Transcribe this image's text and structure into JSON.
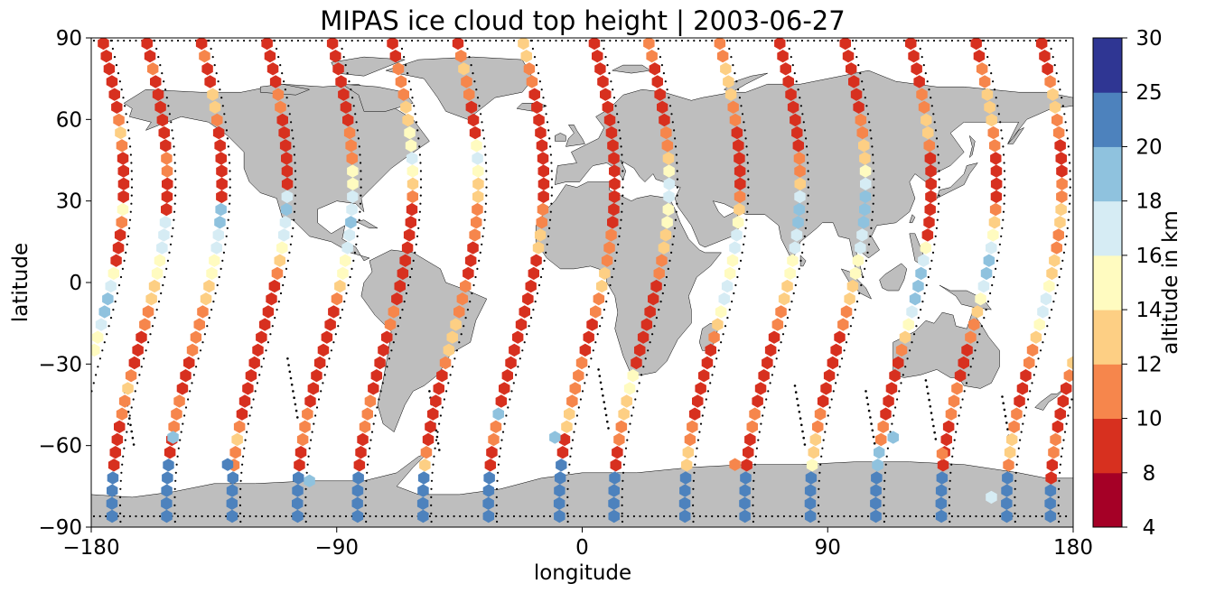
{
  "chart_data": {
    "type": "scatter",
    "subtype": "map-hexbin",
    "title": "MIPAS ice cloud top height | 2003-06-27",
    "xlabel": "longitude",
    "ylabel": "latitude",
    "xlim": [
      -180,
      180
    ],
    "ylim": [
      -90,
      90
    ],
    "xticks": [
      -180,
      -90,
      0,
      90,
      180
    ],
    "yticks": [
      -90,
      -60,
      -30,
      0,
      30,
      60,
      90
    ],
    "xtick_labels": [
      "−180",
      "−90",
      "0",
      "90",
      "180"
    ],
    "ytick_labels": [
      "−90",
      "−60",
      "−30",
      "0",
      "30",
      "60",
      "90"
    ],
    "grid": false,
    "colorbar": {
      "label": "altitude in km",
      "position": "right",
      "levels": [
        4,
        8,
        10,
        12,
        14,
        16,
        18,
        20,
        25,
        30
      ],
      "tick_labels": [
        "4",
        "8",
        "10",
        "12",
        "14",
        "16",
        "18",
        "20",
        "25",
        "30"
      ],
      "colors": [
        "#a50026",
        "#d73027",
        "#f46d43",
        "#fdae61",
        "#fee090",
        "#ffffbf",
        "#e0f3f8",
        "#abd9e9",
        "#4575b4",
        "#313695"
      ],
      "draw_colors": [
        "#a50026",
        "#d7301f",
        "#f6864c",
        "#fdcf84",
        "#fffbc0",
        "#d6ecf4",
        "#8fc2de",
        "#4d82bd",
        "#2f3693"
      ]
    },
    "land_color": "#bebebe",
    "tracks": [
      {
        "lon0": -176,
        "values": [
          8,
          8,
          8,
          8,
          8,
          8,
          10,
          12,
          10,
          8,
          8,
          8,
          8,
          14,
          10,
          8,
          8,
          8,
          14,
          16,
          18,
          18,
          16,
          14,
          14,
          12,
          10,
          8,
          8,
          8,
          8,
          10,
          10,
          8,
          8,
          22,
          22,
          22
        ]
      },
      {
        "lon0": -160,
        "values": [
          8,
          8,
          10,
          8,
          8,
          8,
          8,
          8,
          8,
          10,
          10,
          8,
          8,
          8,
          16,
          16,
          16,
          14,
          14,
          12,
          12,
          10,
          10,
          8,
          8,
          8,
          10,
          12,
          10,
          10,
          8,
          8,
          8,
          8,
          22,
          22,
          22,
          22
        ]
      },
      {
        "lon0": -140,
        "values": [
          8,
          10,
          8,
          8,
          12,
          12,
          10,
          8,
          8,
          8,
          8,
          8,
          8,
          18,
          18,
          16,
          16,
          14,
          14,
          12,
          12,
          10,
          10,
          10,
          10,
          8,
          8,
          8,
          10,
          10,
          10,
          8,
          8,
          22,
          22,
          22,
          22,
          22
        ]
      },
      {
        "lon0": -116,
        "values": [
          8,
          8,
          8,
          8,
          10,
          10,
          8,
          8,
          8,
          8,
          8,
          8,
          16,
          18,
          16,
          16,
          14,
          12,
          10,
          8,
          8,
          8,
          8,
          8,
          8,
          8,
          8,
          8,
          8,
          8,
          10,
          12,
          10,
          10,
          22,
          22,
          22,
          22
        ]
      },
      {
        "lon0": -92,
        "values": [
          8,
          8,
          8,
          8,
          8,
          8,
          8,
          10,
          10,
          10,
          14,
          14,
          16,
          16,
          18,
          16,
          16,
          14,
          14,
          12,
          10,
          8,
          8,
          8,
          8,
          8,
          8,
          8,
          8,
          10,
          10,
          10,
          8,
          8,
          22,
          22,
          22,
          22
        ]
      },
      {
        "lon0": -70,
        "values": [
          8,
          8,
          10,
          10,
          10,
          12,
          12,
          14,
          14,
          16,
          14,
          12,
          10,
          8,
          8,
          8,
          8,
          8,
          8,
          8,
          8,
          10,
          10,
          8,
          8,
          8,
          8,
          8,
          10,
          10,
          10,
          8,
          8,
          8,
          22,
          22,
          22,
          22
        ]
      },
      {
        "lon0": -46,
        "values": [
          8,
          10,
          12,
          10,
          10,
          8,
          8,
          8,
          14,
          16,
          14,
          12,
          12,
          10,
          10,
          10,
          8,
          8,
          8,
          10,
          10,
          10,
          12,
          12,
          12,
          10,
          8,
          8,
          8,
          8,
          8,
          8,
          10,
          12,
          22,
          22,
          22,
          22
        ]
      },
      {
        "lon0": -22,
        "values": [
          12,
          12,
          10,
          10,
          8,
          8,
          8,
          8,
          8,
          8,
          8,
          8,
          8,
          10,
          10,
          12,
          12,
          8,
          8,
          8,
          8,
          8,
          8,
          8,
          8,
          8,
          8,
          8,
          8,
          18,
          10,
          10,
          8,
          8,
          22,
          22,
          22,
          22
        ]
      },
      {
        "lon0": 4,
        "values": [
          8,
          8,
          8,
          8,
          8,
          8,
          8,
          8,
          8,
          8,
          8,
          8,
          8,
          8,
          8,
          10,
          10,
          10,
          12,
          12,
          10,
          10,
          8,
          8,
          8,
          10,
          10,
          10,
          10,
          12,
          12,
          8,
          8,
          22,
          22,
          22,
          22,
          22
        ]
      },
      {
        "lon0": 24,
        "values": [
          10,
          10,
          8,
          8,
          8,
          8,
          8,
          10,
          10,
          12,
          14,
          16,
          16,
          14,
          14,
          12,
          12,
          10,
          10,
          8,
          8,
          8,
          8,
          8,
          8,
          8,
          14,
          14,
          12,
          12,
          10,
          10,
          8,
          8,
          22,
          22,
          22,
          22
        ]
      },
      {
        "lon0": 50,
        "values": [
          10,
          10,
          12,
          12,
          12,
          10,
          10,
          8,
          8,
          8,
          8,
          8,
          10,
          12,
          14,
          16,
          16,
          14,
          14,
          16,
          16,
          14,
          12,
          10,
          8,
          8,
          8,
          8,
          8,
          8,
          10,
          10,
          12,
          12,
          22,
          22,
          22,
          22
        ]
      },
      {
        "lon0": 72,
        "values": [
          8,
          8,
          8,
          8,
          8,
          8,
          8,
          8,
          8,
          10,
          10,
          12,
          16,
          18,
          18,
          16,
          16,
          14,
          14,
          12,
          12,
          10,
          10,
          8,
          8,
          8,
          8,
          8,
          8,
          10,
          10,
          8,
          8,
          8,
          22,
          22,
          22,
          22
        ]
      },
      {
        "lon0": 96,
        "values": [
          8,
          8,
          8,
          8,
          8,
          8,
          10,
          10,
          12,
          12,
          14,
          16,
          18,
          18,
          18,
          16,
          16,
          14,
          14,
          12,
          12,
          10,
          10,
          8,
          8,
          8,
          8,
          8,
          8,
          10,
          10,
          12,
          12,
          14,
          22,
          22,
          22,
          22
        ]
      },
      {
        "lon0": 120,
        "values": [
          8,
          8,
          8,
          8,
          10,
          10,
          12,
          12,
          10,
          8,
          8,
          8,
          8,
          8,
          8,
          8,
          14,
          16,
          18,
          18,
          18,
          16,
          14,
          12,
          10,
          8,
          8,
          8,
          8,
          8,
          10,
          10,
          18,
          18,
          22,
          22,
          22,
          22
        ]
      },
      {
        "lon0": 144,
        "values": [
          8,
          8,
          10,
          10,
          12,
          12,
          12,
          10,
          10,
          8,
          8,
          8,
          8,
          10,
          12,
          14,
          16,
          18,
          18,
          16,
          14,
          12,
          10,
          10,
          8,
          8,
          8,
          10,
          10,
          10,
          8,
          8,
          8,
          8,
          22,
          22,
          22,
          22
        ]
      },
      {
        "lon0": 168,
        "values": [
          8,
          8,
          8,
          10,
          12,
          12,
          10,
          10,
          8,
          8,
          8,
          10,
          10,
          12,
          12,
          10,
          10,
          12,
          12,
          14,
          16,
          16,
          14,
          12,
          10,
          10,
          8,
          8,
          8,
          10,
          10,
          12,
          12,
          10,
          22,
          22,
          22,
          22
        ]
      }
    ],
    "isolated_points": [
      {
        "lon": -150,
        "lat": -57,
        "value": 18
      },
      {
        "lon": -130,
        "lat": -67,
        "value": 22
      },
      {
        "lon": -100,
        "lat": -73,
        "value": 18
      },
      {
        "lon": -10,
        "lat": -57,
        "value": 18
      },
      {
        "lon": 56,
        "lat": -67,
        "value": 10
      },
      {
        "lon": 114,
        "lat": -57,
        "value": 18
      },
      {
        "lon": 132,
        "lat": -63,
        "value": 10
      },
      {
        "lon": 150,
        "lat": -79,
        "value": 16
      }
    ],
    "dropouts": [
      {
        "lon": -168,
        "lat": -38
      },
      {
        "lon": -108,
        "lat": -28
      },
      {
        "lon": -56,
        "lat": -40
      },
      {
        "lon": 6,
        "lat": -32
      },
      {
        "lon": 78,
        "lat": -38
      },
      {
        "lon": 104,
        "lat": -40
      },
      {
        "lon": 126,
        "lat": -36
      },
      {
        "lon": 154,
        "lat": -42
      }
    ]
  }
}
